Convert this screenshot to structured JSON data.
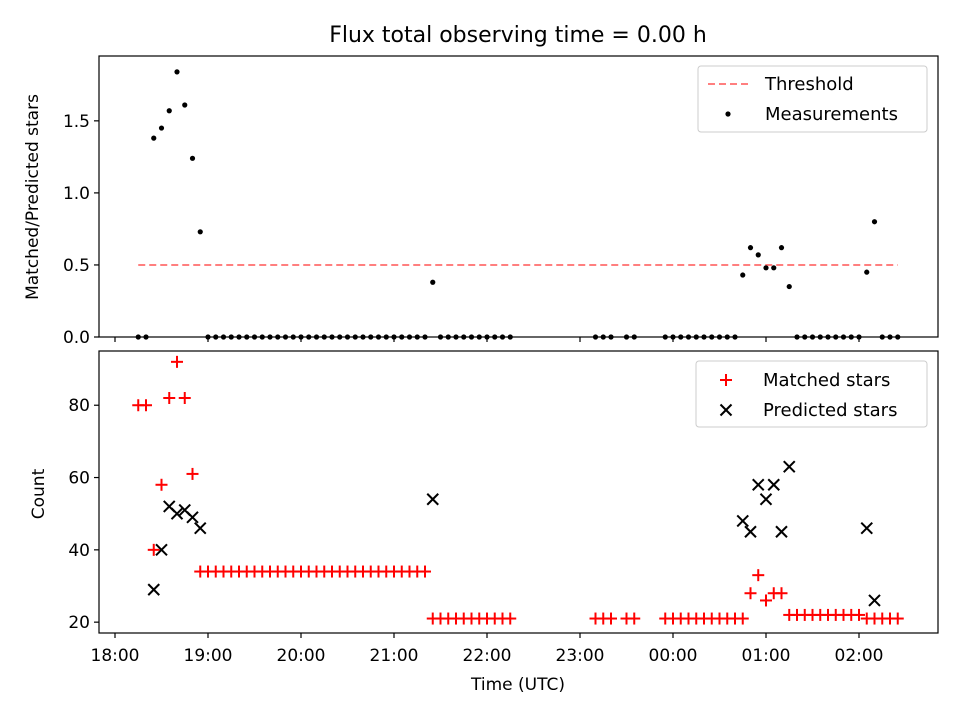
{
  "figure": {
    "title": "Flux total observing time = 0.00 h"
  },
  "colors": {
    "threshold": "#ff7f7f",
    "measurements": "#000000",
    "matched": "#ff0000",
    "predicted": "#000000"
  },
  "chart_data": [
    {
      "type": "scatter",
      "title": "Flux total observing time = 0.00 h",
      "xlabel": "",
      "ylabel": "Matched/Predicted stars",
      "ylim": [
        0,
        1.95
      ],
      "yticks": [
        0.0,
        0.5,
        1.0,
        1.5
      ],
      "ytick_labels": [
        "0.0",
        "0.5",
        "1.0",
        "1.5"
      ],
      "grid": false,
      "legend_position": "top-right",
      "legend": [
        "Threshold",
        "Measurements"
      ],
      "threshold": {
        "name": "Threshold",
        "y": 0.5,
        "x_start": "18:15",
        "x_end": "02:25"
      },
      "series": [
        {
          "name": "Measurements",
          "x": [
            "18:15",
            "18:20",
            "18:25",
            "18:30",
            "18:35",
            "18:40",
            "18:45",
            "18:50",
            "18:55",
            "19:00",
            "19:05",
            "19:10",
            "19:15",
            "19:20",
            "19:25",
            "19:30",
            "19:35",
            "19:40",
            "19:45",
            "19:50",
            "19:55",
            "20:00",
            "20:05",
            "20:10",
            "20:15",
            "20:20",
            "20:25",
            "20:30",
            "20:35",
            "20:40",
            "20:45",
            "20:50",
            "20:55",
            "21:00",
            "21:05",
            "21:10",
            "21:15",
            "21:20",
            "21:25",
            "21:30",
            "21:35",
            "21:40",
            "21:45",
            "21:50",
            "21:55",
            "22:00",
            "22:05",
            "22:10",
            "22:15",
            "23:10",
            "23:15",
            "23:20",
            "23:30",
            "23:35",
            "23:55",
            "00:00",
            "00:05",
            "00:10",
            "00:15",
            "00:20",
            "00:25",
            "00:30",
            "00:35",
            "00:40",
            "00:45",
            "00:50",
            "00:55",
            "01:00",
            "01:05",
            "01:10",
            "01:15",
            "01:20",
            "01:25",
            "01:30",
            "01:35",
            "01:40",
            "01:45",
            "01:50",
            "01:55",
            "02:00",
            "02:05",
            "02:10",
            "02:15",
            "02:20",
            "02:25"
          ],
          "y": [
            0,
            0,
            1.38,
            1.45,
            1.57,
            1.84,
            1.61,
            1.24,
            0.73,
            0,
            0,
            0,
            0,
            0,
            0,
            0,
            0,
            0,
            0,
            0,
            0,
            0,
            0,
            0,
            0,
            0,
            0,
            0,
            0,
            0,
            0,
            0,
            0,
            0,
            0,
            0,
            0,
            0,
            0.38,
            0,
            0,
            0,
            0,
            0,
            0,
            0,
            0,
            0,
            0,
            0,
            0,
            0,
            0,
            0,
            0,
            0,
            0,
            0,
            0,
            0,
            0,
            0,
            0,
            0,
            0.43,
            0.62,
            0.57,
            0.48,
            0.48,
            0.62,
            0.35,
            0,
            0,
            0,
            0,
            0,
            0,
            0,
            0,
            0,
            0.45,
            0.8,
            0,
            0,
            0
          ]
        }
      ]
    },
    {
      "type": "scatter",
      "xlabel": "Time (UTC)",
      "ylabel": "Count",
      "ylim": [
        17,
        95
      ],
      "yticks": [
        20,
        40,
        60,
        80
      ],
      "ytick_labels": [
        "20",
        "40",
        "60",
        "80"
      ],
      "xticks": [
        "18:00",
        "19:00",
        "20:00",
        "21:00",
        "22:00",
        "23:00",
        "00:00",
        "01:00",
        "02:00"
      ],
      "grid": false,
      "legend_position": "top-right",
      "legend": [
        "Matched stars",
        "Predicted stars"
      ],
      "series": [
        {
          "name": "Matched stars",
          "x": [
            "18:15",
            "18:20",
            "18:25",
            "18:30",
            "18:35",
            "18:40",
            "18:45",
            "18:50",
            "18:55",
            "19:00",
            "19:05",
            "19:10",
            "19:15",
            "19:20",
            "19:25",
            "19:30",
            "19:35",
            "19:40",
            "19:45",
            "19:50",
            "19:55",
            "20:00",
            "20:05",
            "20:10",
            "20:15",
            "20:20",
            "20:25",
            "20:30",
            "20:35",
            "20:40",
            "20:45",
            "20:50",
            "20:55",
            "21:00",
            "21:05",
            "21:10",
            "21:15",
            "21:20",
            "21:25",
            "21:30",
            "21:35",
            "21:40",
            "21:45",
            "21:50",
            "21:55",
            "22:00",
            "22:05",
            "22:10",
            "22:15",
            "23:10",
            "23:15",
            "23:20",
            "23:30",
            "23:35",
            "23:55",
            "00:00",
            "00:05",
            "00:10",
            "00:15",
            "00:20",
            "00:25",
            "00:30",
            "00:35",
            "00:40",
            "00:45",
            "00:50",
            "00:55",
            "01:00",
            "01:05",
            "01:10",
            "01:15",
            "01:20",
            "01:25",
            "01:30",
            "01:35",
            "01:40",
            "01:45",
            "01:50",
            "01:55",
            "02:00",
            "02:05",
            "02:10",
            "02:15",
            "02:20",
            "02:25"
          ],
          "y": [
            80,
            80,
            40,
            58,
            82,
            92,
            82,
            61,
            34,
            34,
            34,
            34,
            34,
            34,
            34,
            34,
            34,
            34,
            34,
            34,
            34,
            34,
            34,
            34,
            34,
            34,
            34,
            34,
            34,
            34,
            34,
            34,
            34,
            34,
            34,
            34,
            34,
            34,
            21,
            21,
            21,
            21,
            21,
            21,
            21,
            21,
            21,
            21,
            21,
            21,
            21,
            21,
            21,
            21,
            21,
            21,
            21,
            21,
            21,
            21,
            21,
            21,
            21,
            21,
            21,
            28,
            33,
            26,
            28,
            28,
            22,
            22,
            22,
            22,
            22,
            22,
            22,
            22,
            22,
            22,
            21,
            21,
            21,
            21,
            21
          ]
        },
        {
          "name": "Predicted stars",
          "x": [
            "18:25",
            "18:30",
            "18:35",
            "18:40",
            "18:45",
            "18:50",
            "18:55",
            "21:25",
            "00:45",
            "00:50",
            "00:55",
            "01:00",
            "01:05",
            "01:10",
            "01:15",
            "02:05",
            "02:10"
          ],
          "y": [
            29,
            40,
            52,
            50,
            51,
            49,
            46,
            54,
            48,
            45,
            58,
            54,
            58,
            45,
            63,
            46,
            26
          ]
        }
      ]
    }
  ]
}
